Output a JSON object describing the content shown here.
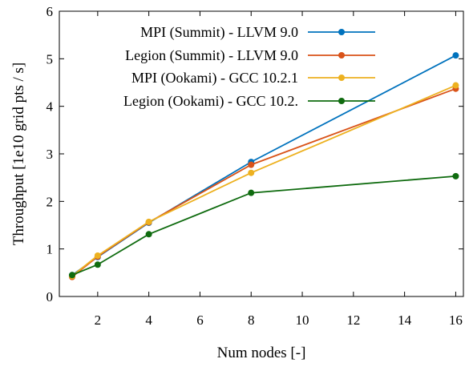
{
  "chart_data": {
    "type": "line",
    "xlabel": "Num nodes [-]",
    "ylabel": "Throughput [1e10 grid pts / s]",
    "xlim": [
      0.5,
      16.3
    ],
    "ylim": [
      0,
      6
    ],
    "xticks": [
      2,
      4,
      6,
      8,
      10,
      12,
      14,
      16
    ],
    "yticks": [
      0,
      1,
      2,
      3,
      4,
      5,
      6
    ],
    "legend_position": "top-left",
    "grid": false,
    "series": [
      {
        "name": "MPI (Summit) - LLVM 9.0",
        "color": "#0072bd",
        "x": [
          1,
          2,
          4,
          8,
          16
        ],
        "y": [
          0.45,
          0.83,
          1.55,
          2.83,
          5.07
        ]
      },
      {
        "name": "Legion (Summit) - LLVM 9.0",
        "color": "#d95319",
        "x": [
          1,
          2,
          4,
          8,
          16
        ],
        "y": [
          0.41,
          0.84,
          1.56,
          2.77,
          4.37
        ]
      },
      {
        "name": "MPI (Ookami) - GCC 10.2.1",
        "color": "#edb120",
        "x": [
          1,
          2,
          4,
          8,
          16
        ],
        "y": [
          0.43,
          0.86,
          1.57,
          2.6,
          4.44
        ]
      },
      {
        "name": "Legion (Ookami) - GCC 10.2.",
        "color": "#0f6b0f",
        "x": [
          1,
          2,
          4,
          8,
          16
        ],
        "y": [
          0.45,
          0.67,
          1.31,
          2.18,
          2.53
        ]
      }
    ]
  }
}
